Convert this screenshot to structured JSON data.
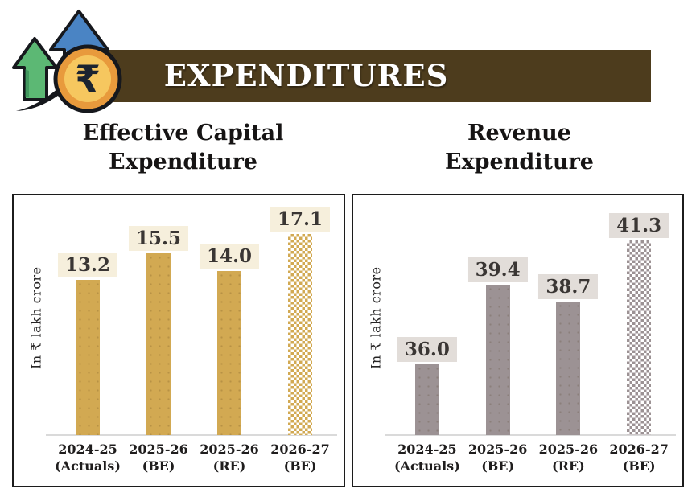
{
  "header": {
    "title": "EXPENDITURES",
    "banner_color": "#4d3c1d",
    "icon": "growth-arrows-rupee-coin"
  },
  "chart_data": [
    {
      "type": "bar",
      "title": "Effective Capital Expenditure",
      "ylabel": "In ₹ lakh crore",
      "categories": [
        {
          "line1": "2024-25",
          "line2": "(Actuals)"
        },
        {
          "line1": "2025-26",
          "line2": "(BE)"
        },
        {
          "line1": "2025-26",
          "line2": "(RE)"
        },
        {
          "line1": "2026-27",
          "line2": "(BE)"
        }
      ],
      "values": [
        13.2,
        15.5,
        14.0,
        17.1
      ],
      "value_labels": [
        "13.2",
        "15.5",
        "14.0",
        "17.1"
      ],
      "ylim": [
        0,
        20
      ],
      "bar_color": "#d2a952",
      "label_bg": "#f6efdc",
      "last_bar_patterned": true,
      "grid": false,
      "legend": false
    },
    {
      "type": "bar",
      "title": "Revenue Expenditure",
      "ylabel": "In ₹ lakh crore",
      "categories": [
        {
          "line1": "2024-25",
          "line2": "(Actuals)"
        },
        {
          "line1": "2025-26",
          "line2": "(BE)"
        },
        {
          "line1": "2025-26",
          "line2": "(RE)"
        },
        {
          "line1": "2026-27",
          "line2": "(BE)"
        }
      ],
      "values": [
        36.0,
        39.4,
        38.7,
        41.3
      ],
      "value_labels": [
        "36.0",
        "39.4",
        "38.7",
        "41.3"
      ],
      "ylim": [
        33,
        43
      ],
      "bar_color": "#9c9294",
      "label_bg": "#e2ddd9",
      "last_bar_patterned": true,
      "grid": false,
      "legend": false
    }
  ]
}
